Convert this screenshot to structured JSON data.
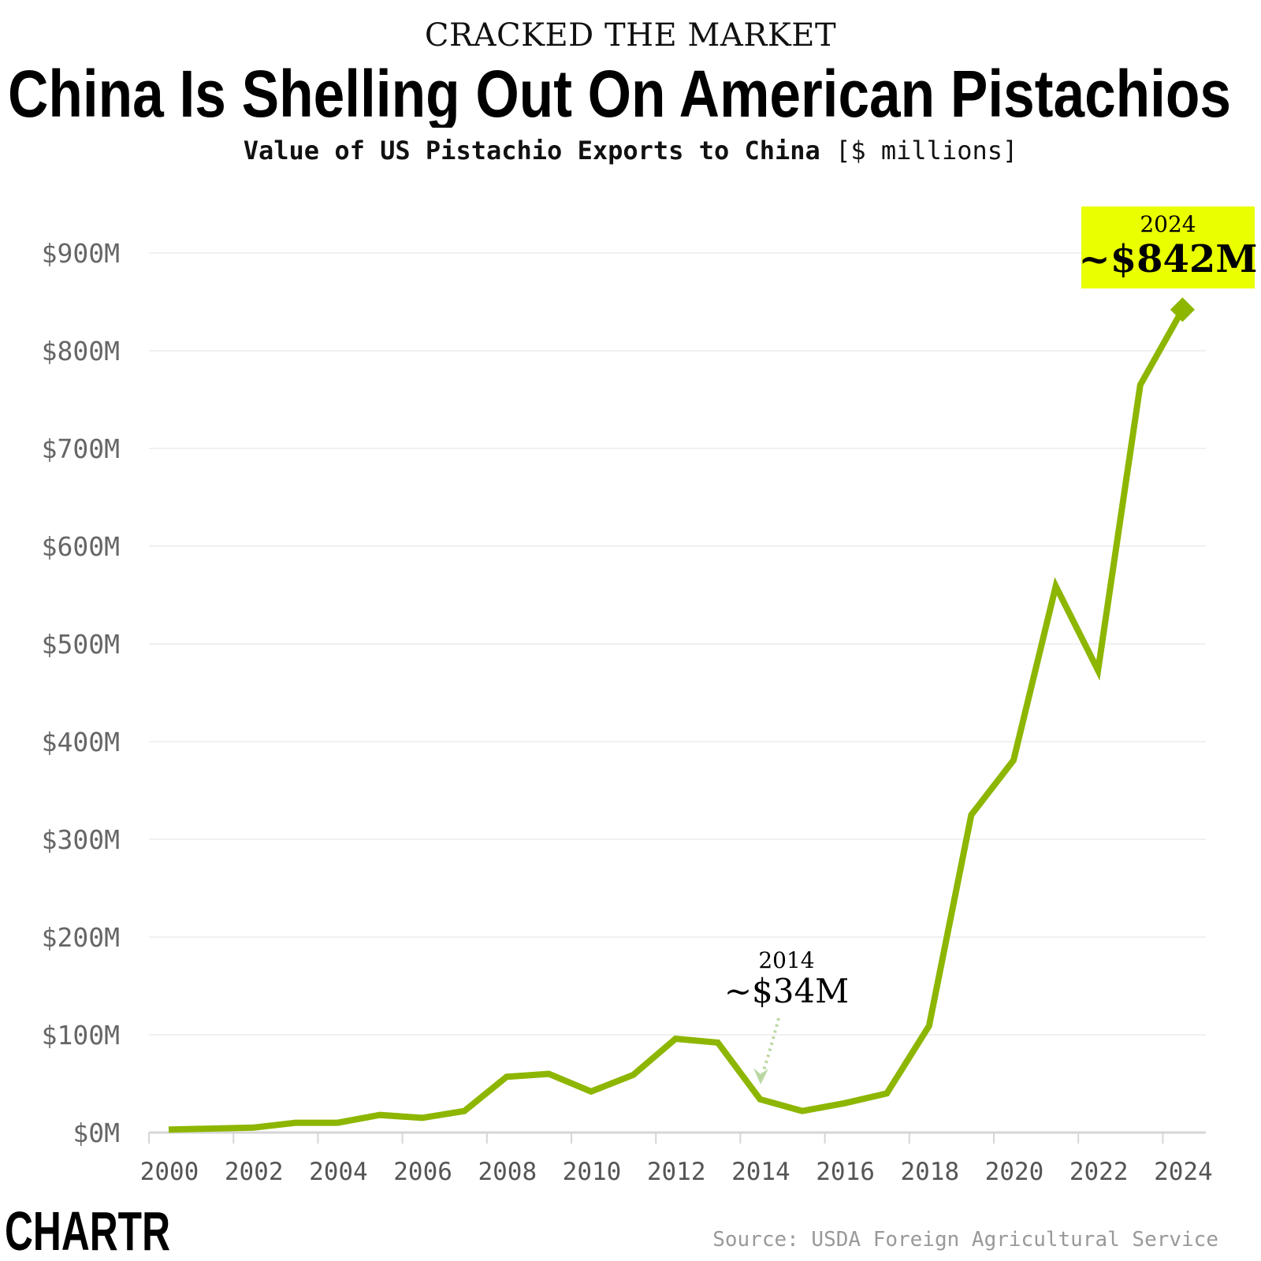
{
  "header": {
    "kicker": "CRACKED THE MARKET",
    "title": "China Is Shelling Out On American Pistachios",
    "subtitle_bold": "Value of US Pistachio Exports to China",
    "subtitle_unit": "[$ millions]"
  },
  "chart_data": {
    "type": "line",
    "title": "Value of US Pistachio Exports to China",
    "ylabel": "[$ millions]",
    "xlabel": "",
    "x": [
      2000,
      2001,
      2002,
      2003,
      2004,
      2005,
      2006,
      2007,
      2008,
      2009,
      2010,
      2011,
      2012,
      2013,
      2014,
      2015,
      2016,
      2017,
      2018,
      2019,
      2020,
      2021,
      2022,
      2023,
      2024
    ],
    "values": [
      3,
      4,
      5,
      10,
      10,
      18,
      15,
      22,
      57,
      60,
      42,
      59,
      96,
      92,
      34,
      22,
      30,
      40,
      109,
      325,
      381,
      559,
      473,
      765,
      842
    ],
    "ylim": [
      0,
      900
    ],
    "xlim": [
      2000,
      2024
    ],
    "y_ticks": [
      0,
      100,
      200,
      300,
      400,
      500,
      600,
      700,
      800,
      900
    ],
    "y_tick_labels": [
      "$0M",
      "$100M",
      "$200M",
      "$300M",
      "$400M",
      "$500M",
      "$600M",
      "$700M",
      "$800M",
      "$900M"
    ],
    "x_ticks": [
      2000,
      2002,
      2004,
      2006,
      2008,
      2010,
      2012,
      2014,
      2016,
      2018,
      2020,
      2022,
      2024
    ],
    "x_tick_labels": [
      "2000",
      "2002",
      "2004",
      "2006",
      "2008",
      "2010",
      "2012",
      "2014",
      "2016",
      "2018",
      "2020",
      "2022",
      "2024"
    ],
    "grid": true,
    "line_color": "#8db600",
    "highlight_color": "#eaff00",
    "annotations": [
      {
        "year_label": "2014",
        "value_label": "~$34M",
        "x": 2014,
        "y": 34
      },
      {
        "year_label": "2024",
        "value_label": "~$842M",
        "x": 2024,
        "y": 842
      }
    ]
  },
  "footer": {
    "source": "Source: USDA Foreign Agricultural Service",
    "logo": "CHARTR"
  }
}
